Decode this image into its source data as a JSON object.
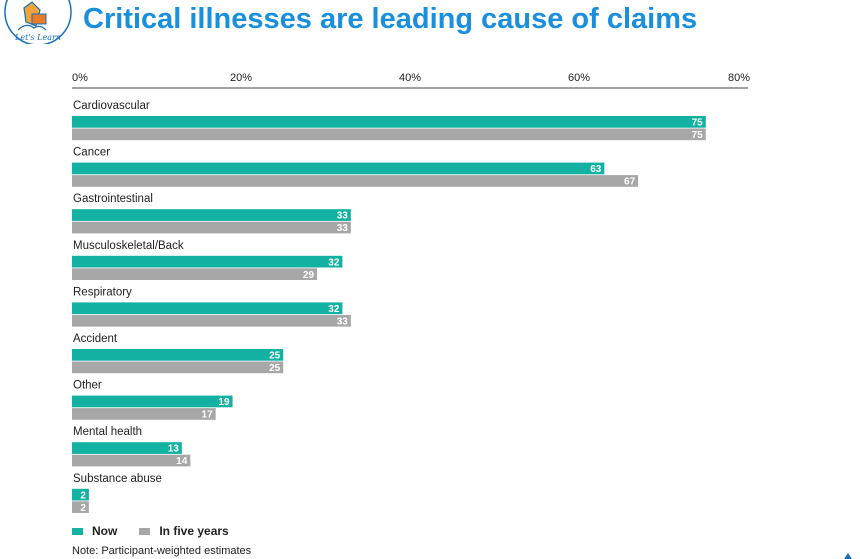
{
  "page": {
    "title": "Critical illnesses are leading cause of claims",
    "logo_text": "Let's Learn",
    "note": "Note: Participant-weighted estimates"
  },
  "colors": {
    "now": "#13b1a2",
    "five_years": "#a7a7a7",
    "title": "#1a8fdc"
  },
  "legend": [
    {
      "label": "Now",
      "color": "#13b1a2"
    },
    {
      "label": "In five years",
      "color": "#a7a7a7"
    }
  ],
  "chart_data": {
    "type": "bar",
    "orientation": "horizontal",
    "categories": [
      "Cardiovascular",
      "Cancer",
      "Gastrointestinal",
      "Musculoskeletal/Back",
      "Respiratory",
      "Accident",
      "Other",
      "Mental health",
      "Substance abuse"
    ],
    "series": [
      {
        "name": "Now",
        "values": [
          75,
          63,
          33,
          32,
          32,
          25,
          19,
          13,
          2
        ]
      },
      {
        "name": "In five years",
        "values": [
          75,
          67,
          33,
          29,
          33,
          25,
          17,
          14,
          2
        ]
      }
    ],
    "xlim": [
      0,
      80
    ],
    "xticks": [
      "0%",
      "20%",
      "40%",
      "60%",
      "80%"
    ],
    "legend_position": "bottom-left",
    "grid": false
  }
}
